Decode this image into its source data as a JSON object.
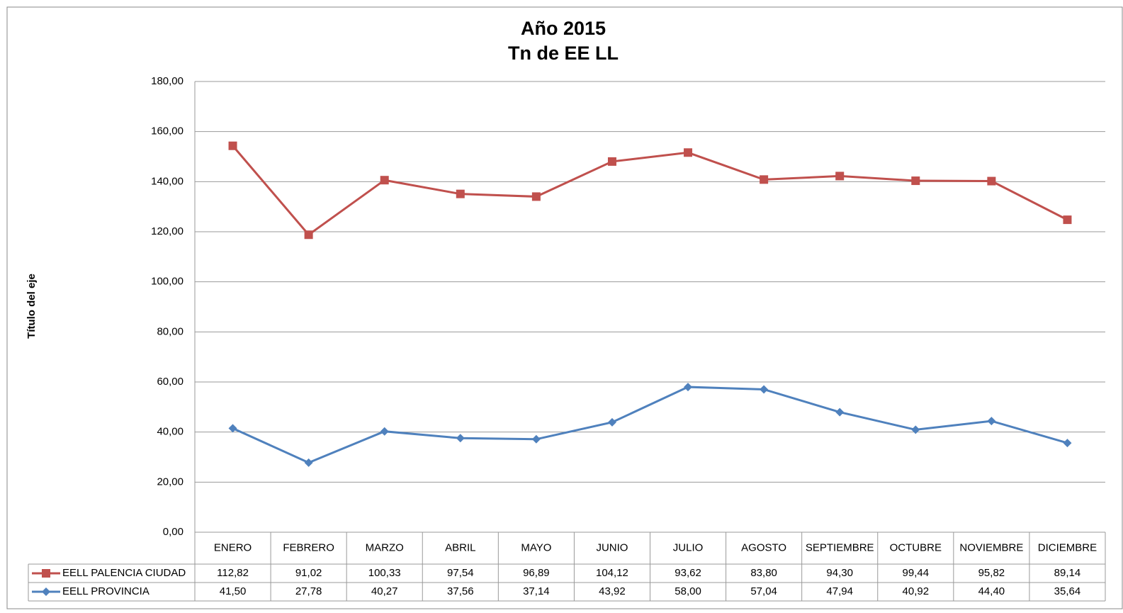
{
  "chart_data": {
    "type": "line",
    "stacked": true,
    "title": "Año 2015",
    "subtitle": "Tn de EE LL",
    "y_label": "Título del eje",
    "categories": [
      "ENERO",
      "FEBRERO",
      "MARZO",
      "ABRIL",
      "MAYO",
      "JUNIO",
      "JULIO",
      "AGOSTO",
      "SEPTIEMBRE",
      "OCTUBRE",
      "NOVIEMBRE",
      "DICIEMBRE"
    ],
    "series": [
      {
        "name": "EELL PALENCIA CIUDAD",
        "color": "#c0504d",
        "marker": "square",
        "values": [
          112.82,
          91.02,
          100.33,
          97.54,
          96.89,
          104.12,
          93.62,
          83.8,
          94.3,
          99.44,
          95.82,
          89.14
        ],
        "value_labels": [
          "112,82",
          "91,02",
          "100,33",
          "97,54",
          "96,89",
          "104,12",
          "93,62",
          "83,80",
          "94,30",
          "99,44",
          "95,82",
          "89,14"
        ]
      },
      {
        "name": "EELL PROVINCIA",
        "color": "#4f81bd",
        "marker": "diamond",
        "values": [
          41.5,
          27.78,
          40.27,
          37.56,
          37.14,
          43.92,
          58.0,
          57.04,
          47.94,
          40.92,
          44.4,
          35.64
        ],
        "value_labels": [
          "41,50",
          "27,78",
          "40,27",
          "37,56",
          "37,14",
          "43,92",
          "58,00",
          "57,04",
          "47,94",
          "40,92",
          "44,40",
          "35,64"
        ]
      }
    ],
    "ylim": [
      0,
      180
    ],
    "yticks": [
      {
        "value": 0,
        "label": "0,00"
      },
      {
        "value": 20,
        "label": "20,00"
      },
      {
        "value": 40,
        "label": "40,00"
      },
      {
        "value": 60,
        "label": "60,00"
      },
      {
        "value": 80,
        "label": "80,00"
      },
      {
        "value": 100,
        "label": "100,00"
      },
      {
        "value": 120,
        "label": "120,00"
      },
      {
        "value": 140,
        "label": "140,00"
      },
      {
        "value": 160,
        "label": "160,00"
      },
      {
        "value": 180,
        "label": "180,00"
      }
    ],
    "grid": true
  }
}
